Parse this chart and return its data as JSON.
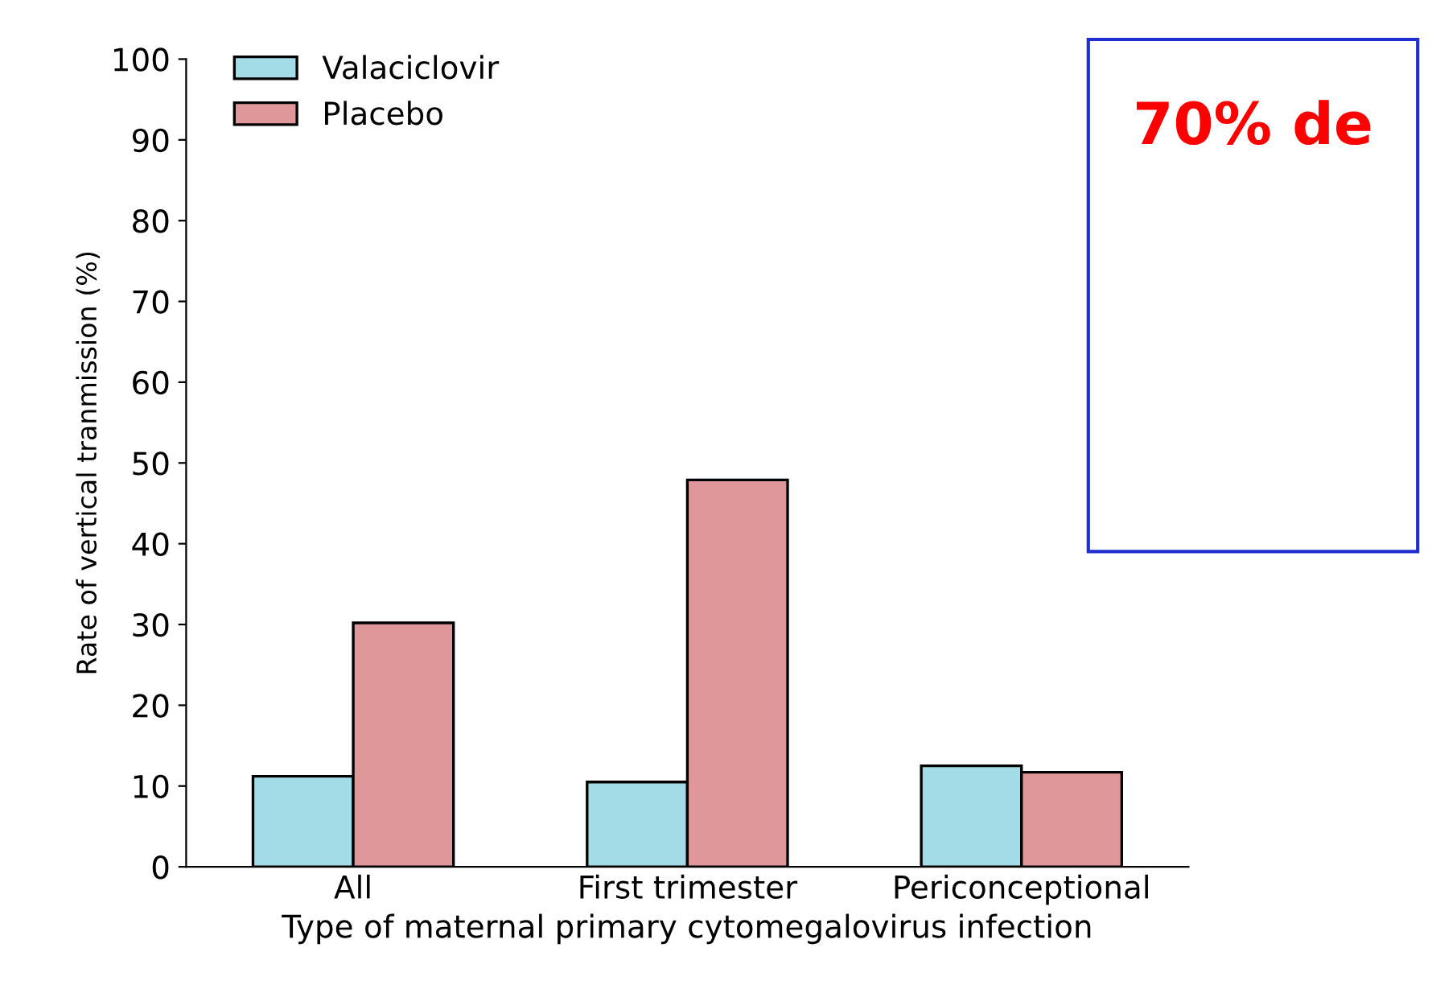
{
  "chart_data": {
    "type": "bar",
    "xlabel": "Type of maternal primary cytomegalovirus infection",
    "ylabel": "Rate of vertical tranmission (%)",
    "categories": [
      "All",
      "First trimester",
      "Periconceptional"
    ],
    "series": [
      {
        "name": "Valaciclovir",
        "color": "#a3dce6",
        "values": [
          11.2,
          10.5,
          12.5
        ]
      },
      {
        "name": "Placebo",
        "color": "#e0979a",
        "values": [
          30.2,
          47.9,
          11.7
        ]
      }
    ],
    "ylim": [
      0,
      100
    ],
    "yticks": [
      0,
      10,
      20,
      30,
      40,
      50,
      60,
      70,
      80,
      90,
      100
    ],
    "annotations": [
      "70% de"
    ],
    "legend": "top left",
    "grid": false
  }
}
